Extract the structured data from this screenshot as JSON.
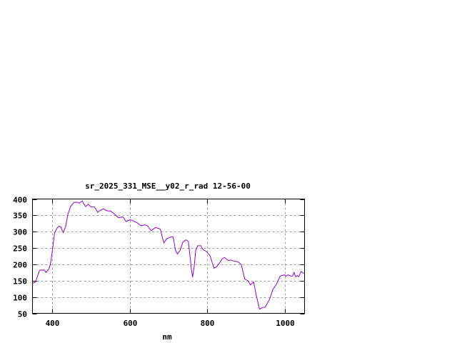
{
  "chart_data": {
    "type": "line",
    "title": "sr_2025_331_MSE__y02_r_rad 12-56-00",
    "xlabel": "nm",
    "ylabel": "",
    "xlim": [
      350,
      1050
    ],
    "ylim": [
      50,
      400
    ],
    "xticks": [
      400,
      600,
      800,
      1000
    ],
    "yticks": [
      50,
      100,
      150,
      200,
      250,
      300,
      350,
      400
    ],
    "grid": true,
    "line_color": "#9400d3",
    "grid_color": "#a0a0a0",
    "series": [
      {
        "x": [
          351,
          358,
          368,
          380,
          385,
          393,
          397,
          402,
          407,
          414,
          419,
          423,
          429,
          435,
          441,
          448,
          457,
          466,
          470,
          478,
          482,
          487,
          493,
          501,
          510,
          518,
          524,
          533,
          541,
          551,
          560,
          571,
          583,
          591,
          600,
          606,
          621,
          629,
          640,
          646,
          655,
          667,
          679,
          684,
          688,
          695,
          706,
          712,
          718,
          723,
          730,
          737,
          745,
          751,
          756,
          759,
          762,
          766,
          770,
          775,
          783,
          789,
          798,
          807,
          817,
          824,
          832,
          838,
          844,
          853,
          862,
          868,
          878,
          887,
          896,
          905,
          911,
          919,
          926,
          934,
          942,
          949,
          960,
          968,
          978,
          987,
          992,
          998,
          1003,
          1007,
          1015,
          1019,
          1023,
          1027,
          1031,
          1035,
          1041,
          1047,
          1050
        ],
        "y": [
          142,
          146,
          182,
          183,
          175,
          188,
          206,
          250,
          297,
          312,
          317,
          314,
          297,
          315,
          352,
          377,
          390,
          390,
          387,
          394,
          385,
          377,
          384,
          376,
          375,
          359,
          365,
          370,
          364,
          363,
          355,
          343,
          345,
          331,
          336,
          335,
          326,
          318,
          321,
          318,
          303,
          313,
          308,
          283,
          266,
          278,
          284,
          283,
          243,
          232,
          243,
          268,
          275,
          270,
          217,
          184,
          161,
          192,
          243,
          257,
          257,
          245,
          239,
          226,
          188,
          193,
          205,
          217,
          221,
          212,
          213,
          210,
          208,
          200,
          155,
          149,
          137,
          146,
          104,
          63,
          68,
          69,
          93,
          122,
          140,
          164,
          166,
          168,
          164,
          168,
          164,
          164,
          175,
          162,
          166,
          162,
          178,
          173,
          172
        ]
      }
    ]
  }
}
